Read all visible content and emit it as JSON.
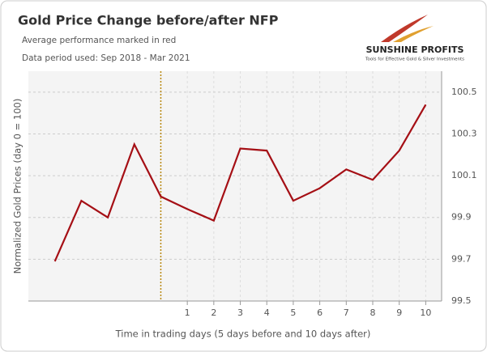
{
  "chart_data": {
    "type": "line",
    "title": "Gold Price Change before/after NFP",
    "subtitle": [
      "Average performance marked in red",
      "Data period used: Sep 2018 - Mar 2021"
    ],
    "x_label": "Time in trading days (5 days before and 10 days after)",
    "y_label": "Normalized Gold Prices (day 0 = 100)",
    "logo": {
      "name": "SUNSHINE PROFITS",
      "tagline": "Tools for Effective Gold & Silver Investments"
    },
    "x": [
      -4,
      -3,
      -2,
      -1,
      0,
      1,
      2,
      3,
      4,
      5,
      6,
      7,
      8,
      9,
      10
    ],
    "series": [
      {
        "name": "Average performance",
        "color": "#a50f15",
        "values": [
          99.69,
          99.98,
          99.9,
          100.25,
          100.0,
          99.94,
          99.885,
          100.23,
          100.22,
          99.98,
          100.04,
          100.13,
          100.08,
          100.22,
          100.44
        ]
      }
    ],
    "xlim": [
      -5,
      10.6
    ],
    "xticks": [
      1,
      2,
      3,
      4,
      5,
      6,
      7,
      8,
      9,
      10
    ],
    "ylim": [
      99.5,
      100.6
    ],
    "yticks": [
      99.5,
      99.7,
      99.9,
      100.1,
      100.3,
      100.5
    ],
    "vline_x": 0,
    "vline_color": "#b8860b",
    "grid": true
  }
}
